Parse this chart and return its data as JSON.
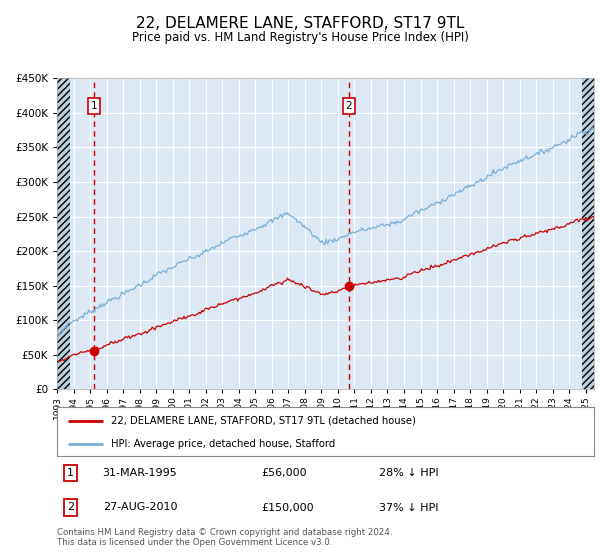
{
  "title": "22, DELAMERE LANE, STAFFORD, ST17 9TL",
  "subtitle": "Price paid vs. HM Land Registry's House Price Index (HPI)",
  "title_fontsize": 11,
  "subtitle_fontsize": 8.5,
  "background_color": "#ffffff",
  "plot_bg_color": "#dce9f5",
  "hatch_color": "#b8cfe0",
  "grid_color": "#ffffff",
  "red_line_color": "#cc0000",
  "blue_line_color": "#7bafd4",
  "dashed_line_color": "#cc0000",
  "marker_color": "#cc0000",
  "ylim": [
    0,
    450000
  ],
  "yticks": [
    0,
    50000,
    100000,
    150000,
    200000,
    250000,
    300000,
    350000,
    400000,
    450000
  ],
  "ytick_labels": [
    "£0",
    "£50K",
    "£100K",
    "£150K",
    "£200K",
    "£250K",
    "£300K",
    "£350K",
    "£400K",
    "£450K"
  ],
  "xmin_year": 1993.0,
  "xmax_year": 2025.5,
  "sale1_year": 1995.25,
  "sale1_price": 56000,
  "sale2_year": 2010.65,
  "sale2_price": 150000,
  "legend1_text": "22, DELAMERE LANE, STAFFORD, ST17 9TL (detached house)",
  "legend2_text": "HPI: Average price, detached house, Stafford",
  "table_row1": [
    "1",
    "31-MAR-1995",
    "£56,000",
    "28% ↓ HPI"
  ],
  "table_row2": [
    "2",
    "27-AUG-2010",
    "£150,000",
    "37% ↓ HPI"
  ],
  "footnote": "Contains HM Land Registry data © Crown copyright and database right 2024.\nThis data is licensed under the Open Government Licence v3.0.",
  "xtick_years": [
    1993,
    1994,
    1995,
    1996,
    1997,
    1998,
    1999,
    2000,
    2001,
    2002,
    2003,
    2004,
    2005,
    2006,
    2007,
    2008,
    2009,
    2010,
    2011,
    2012,
    2013,
    2014,
    2015,
    2016,
    2017,
    2018,
    2019,
    2020,
    2021,
    2022,
    2023,
    2024,
    2025
  ]
}
